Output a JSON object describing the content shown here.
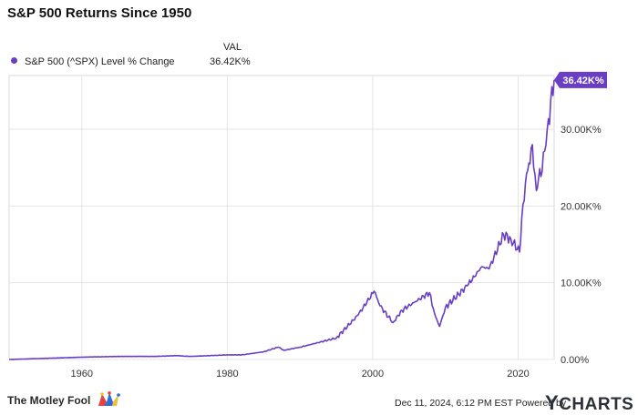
{
  "title": "S&P 500 Returns Since 1950",
  "legend": {
    "value_header": "VAL",
    "series_label": "S&P 500 (^SPX) Level % Change",
    "series_value": "36.42K%",
    "color": "#6a3dc5"
  },
  "footer": {
    "date_text": "Dec 11, 2024, 6:12 PM EST Powered by",
    "ycharts_logo": "CHARTS",
    "motley_fool_logo": "The Motley Fool"
  },
  "chart_data": {
    "type": "line",
    "title": "S&P 500 Returns Since 1950",
    "xlabel": "",
    "ylabel": "",
    "xlim": [
      1950,
      2024.95
    ],
    "ylim": [
      0,
      37000
    ],
    "x_ticks": [
      1960,
      1980,
      2000,
      2020
    ],
    "x_tick_labels": [
      "1960",
      "1980",
      "2000",
      "2020"
    ],
    "y_ticks": [
      0,
      10000,
      20000,
      30000
    ],
    "y_tick_labels": [
      "0.00%",
      "10.00K%",
      "20.00K%",
      "30.00K%"
    ],
    "grid": true,
    "legend_position": "top-left",
    "end_label": "36.42K%",
    "series": [
      {
        "name": "S&P 500 (^SPX) Level % Change",
        "color": "#6a3dc5",
        "x": [
          1950,
          1955,
          1960,
          1965,
          1970,
          1973,
          1975,
          1980,
          1982,
          1985,
          1987,
          1987.8,
          1990,
          1995,
          1998,
          2000.2,
          2001,
          2002.8,
          2004,
          2007.8,
          2008.5,
          2009.2,
          2010,
          2013,
          2015,
          2016,
          2018,
          2019,
          2020.2,
          2020.5,
          2021,
          2021.95,
          2022.5,
          2022.8,
          2023.3,
          2024,
          2024.95
        ],
        "y": [
          0,
          150,
          300,
          400,
          400,
          500,
          400,
          600,
          600,
          1000,
          1600,
          1200,
          1600,
          2800,
          5800,
          8900,
          7000,
          4800,
          6400,
          8700,
          6000,
          4300,
          6800,
          9600,
          12100,
          11800,
          16300,
          15700,
          14000,
          18500,
          23000,
          28000,
          22000,
          23500,
          24500,
          30000,
          36420
        ]
      }
    ]
  }
}
